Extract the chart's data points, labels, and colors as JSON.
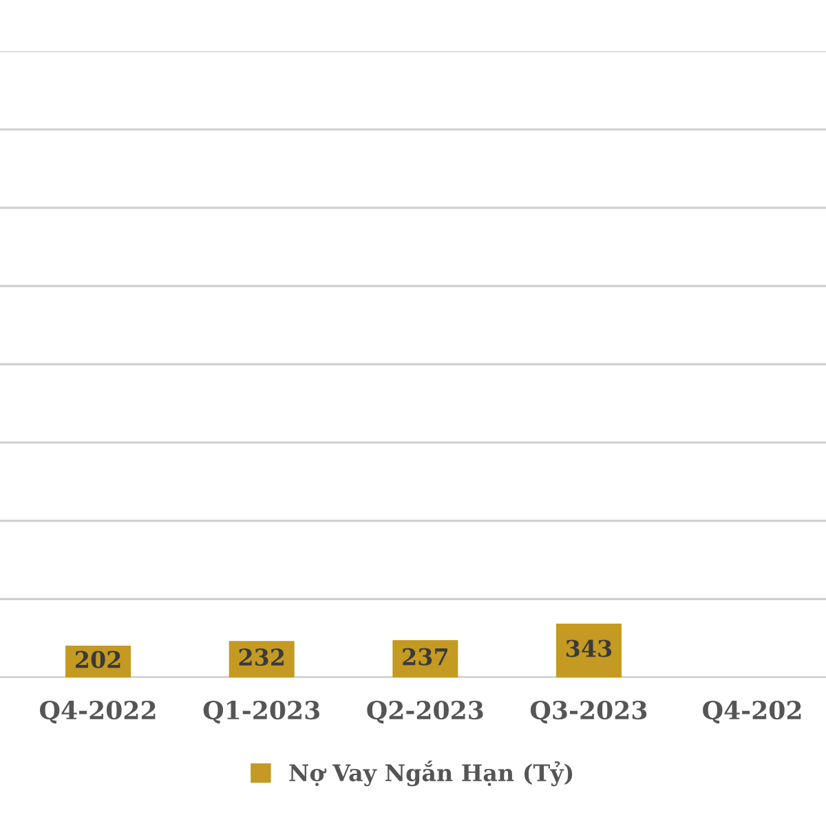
{
  "chart_data": {
    "type": "bar",
    "categories": [
      "Q4-2022",
      "Q1-2023",
      "Q2-2023",
      "Q3-2023",
      "Q4-202"
    ],
    "series": [
      {
        "name": "Nợ Vay Ngắn Hạn (Tỷ)",
        "color": "#c49a22",
        "values": [
          202,
          232,
          237,
          343,
          null
        ]
      }
    ],
    "ylim": [
      0,
      4000
    ],
    "yticks": [
      {
        "value": 0,
        "label": null
      },
      {
        "value": 500,
        "label": null
      },
      {
        "value": 1000,
        "label": null
      },
      {
        "value": 1500,
        "label": null
      },
      {
        "value": 2000,
        "label": null
      },
      {
        "value": 2500,
        "label": null
      },
      {
        "value": 3000,
        "label": null
      },
      {
        "value": 3500,
        "label": null
      },
      {
        "value": 4000,
        "label": null
      }
    ],
    "grid": "y",
    "legend": "bottom",
    "data_labels": true,
    "tick_labels": "x"
  }
}
